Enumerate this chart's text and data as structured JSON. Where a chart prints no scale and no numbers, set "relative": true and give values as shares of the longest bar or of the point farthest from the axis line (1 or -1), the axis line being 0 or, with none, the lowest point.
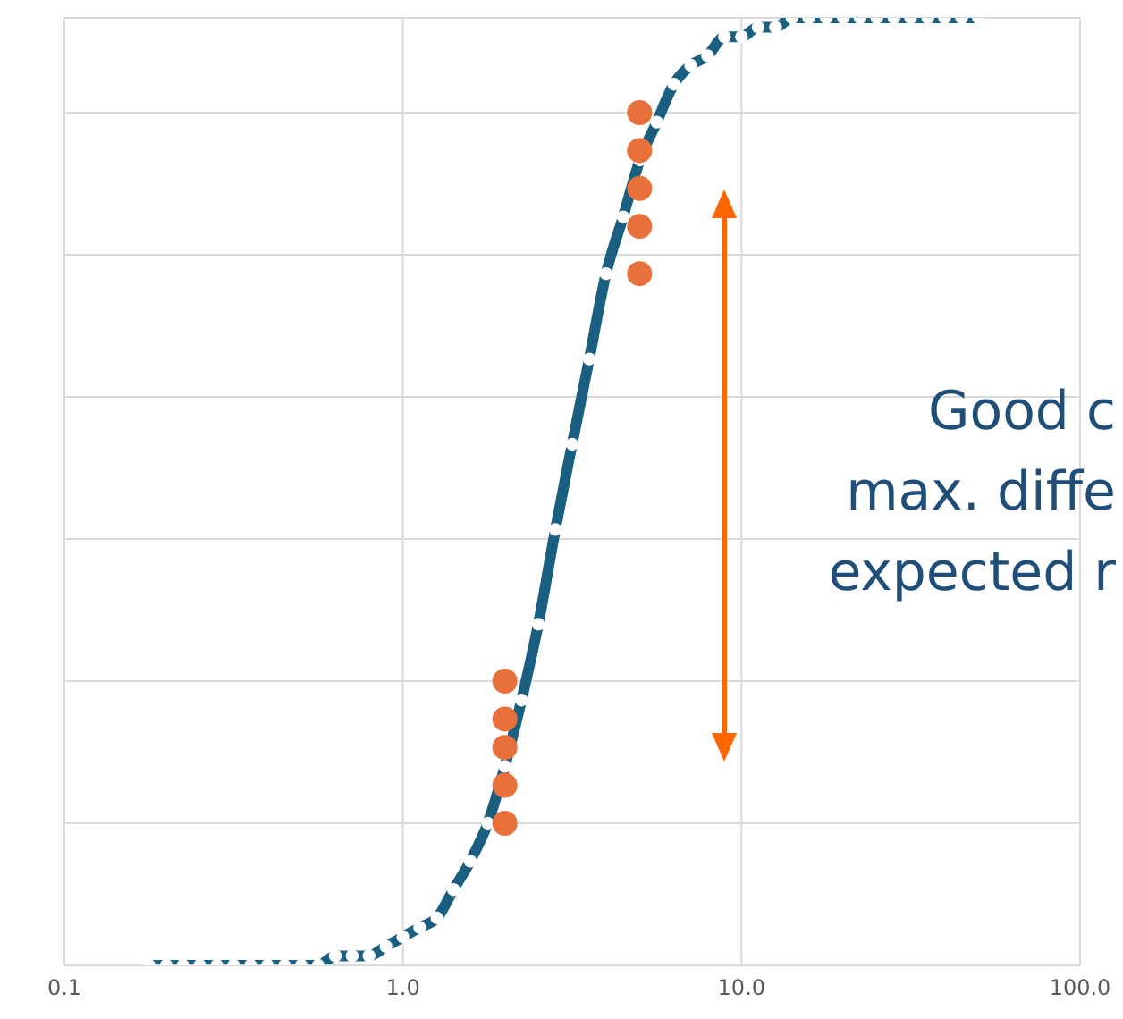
{
  "chart_data": {
    "type": "line",
    "relative": true,
    "log": "x",
    "grid": true,
    "marker": "circle",
    "xlim": [
      0.1,
      100
    ],
    "xticks": [
      0.1,
      {
        "value": 1,
        "label": "1.0"
      },
      {
        "value": 10,
        "label": "10.0"
      },
      {
        "value": 100,
        "label": "100.0"
      }
    ],
    "annotations": [
      "Good c",
      "max. diffe",
      "expected r"
    ],
    "series": [
      {
        "color": "#1a5e80",
        "x": [
          0.178,
          0.2,
          0.224,
          0.251,
          0.282,
          0.316,
          0.355,
          0.398,
          0.447,
          0.501,
          0.562,
          0.631,
          0.708,
          0.794,
          0.891,
          1.0,
          1.12,
          1.26,
          1.41,
          1.58,
          1.78,
          2.0,
          2.24,
          2.51,
          2.82,
          3.16,
          3.55,
          3.98,
          4.47,
          5.01,
          5.62,
          6.31,
          7.08,
          7.94,
          8.91,
          10,
          11.2,
          12.6,
          14.1,
          15.8,
          17.8,
          20,
          22.4,
          25.1,
          28.2,
          31.6,
          35.5,
          39.8,
          44.7,
          50.1
        ],
        "values": [
          0,
          0,
          0,
          0,
          0,
          0,
          0,
          0,
          0,
          0,
          0,
          0.01,
          0.01,
          0.01,
          0.02,
          0.03,
          0.04,
          0.05,
          0.08,
          0.11,
          0.15,
          0.21,
          0.28,
          0.36,
          0.46,
          0.55,
          0.64,
          0.73,
          0.79,
          0.85,
          0.89,
          0.93,
          0.95,
          0.96,
          0.98,
          0.98,
          0.99,
          0.99,
          1,
          1,
          1,
          1,
          1,
          1,
          1,
          1,
          1,
          1,
          1,
          1
        ]
      },
      {
        "type": "scatter",
        "color": "#e8703a",
        "x": [
          2,
          2,
          2,
          2,
          2,
          5,
          5,
          5,
          5,
          5
        ],
        "values": [
          0.3,
          0.26,
          0.23,
          0.19,
          0.15,
          0.9,
          0.86,
          0.82,
          0.78,
          0.73
        ]
      }
    ]
  }
}
